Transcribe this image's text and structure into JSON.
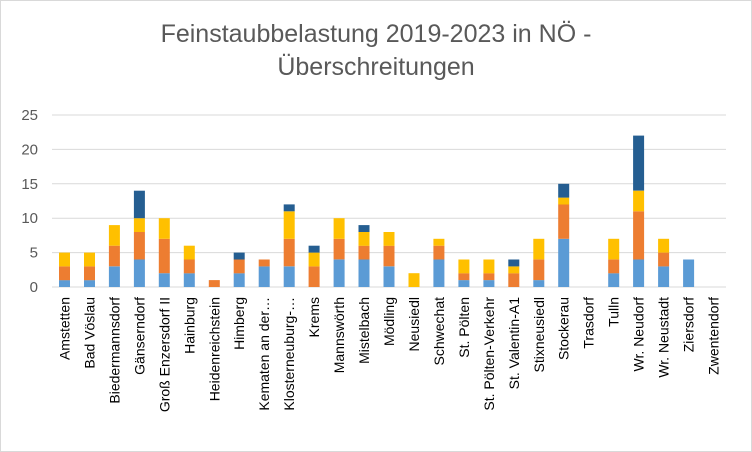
{
  "chart_data": {
    "type": "bar",
    "stacked": true,
    "title_line1": "Feinstaubbelastung 2019-2023 in NÖ -",
    "title_line2": "Überschreitungen",
    "ylim": [
      0,
      25
    ],
    "yticks": [
      "0",
      "5",
      "10",
      "15",
      "20",
      "25"
    ],
    "grid": true,
    "legend": "none",
    "colors": [
      "#5b9bd5",
      "#ed7d31",
      "#a5a5a5",
      "#ffc000",
      "#255e91"
    ],
    "categories": [
      "Amstetten",
      "Bad Vöslau",
      "Biedermannsdorf",
      "Gänserndorf",
      "Groß Enzersdorf II",
      "Hainburg",
      "Heidenreichstein",
      "Himberg",
      "Kematen an der…",
      "Klosterneuburg-…",
      "Krems",
      "Mannswörth",
      "Mistelbach",
      "Mödling",
      "Neusiedl",
      "Schwechat",
      "St. Pölten",
      "St. Pölten-Verkehr",
      "St. Valentin-A1",
      "Stixneusiedl",
      "Stockerau",
      "Trasdorf",
      "Tulln",
      "Wr. Neudorf",
      "Wr. Neustadt",
      "Ziersdorf",
      "Zwentendorf"
    ],
    "series": [
      {
        "values": [
          1,
          1,
          3,
          4,
          2,
          2,
          0,
          2,
          3,
          3,
          0,
          4,
          4,
          3,
          0,
          4,
          1,
          1,
          0,
          1,
          7,
          0,
          2,
          4,
          3,
          4,
          0
        ]
      },
      {
        "values": [
          2,
          2,
          3,
          4,
          5,
          2,
          1,
          2,
          1,
          4,
          3,
          3,
          2,
          3,
          0,
          2,
          1,
          1,
          2,
          3,
          5,
          0,
          2,
          7,
          2,
          0,
          0
        ]
      },
      {
        "values": [
          0,
          0,
          0,
          0,
          0,
          0,
          0,
          0,
          0,
          0,
          0,
          0,
          0,
          0,
          0,
          0,
          0,
          0,
          0,
          0,
          0,
          0,
          0,
          0,
          0,
          0,
          0
        ]
      },
      {
        "values": [
          2,
          2,
          3,
          2,
          3,
          2,
          0,
          0,
          0,
          4,
          2,
          3,
          2,
          2,
          2,
          1,
          2,
          2,
          1,
          3,
          1,
          0,
          3,
          3,
          2,
          0,
          0
        ]
      },
      {
        "values": [
          0,
          0,
          0,
          4,
          0,
          0,
          0,
          1,
          0,
          1,
          1,
          0,
          1,
          0,
          0,
          0,
          0,
          0,
          1,
          0,
          2,
          0,
          0,
          8,
          0,
          0,
          0
        ]
      }
    ]
  }
}
